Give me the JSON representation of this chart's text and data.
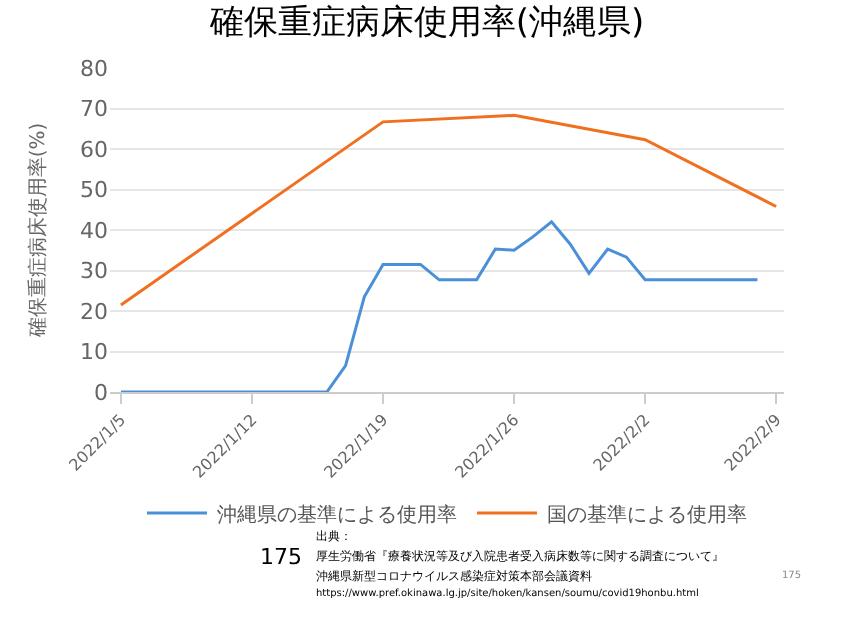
{
  "chart_data": {
    "type": "line",
    "title": "確保重症病床使用率(沖縄県)",
    "ylabel": "確保重症病床使用率(%)",
    "xlim": [
      "2022-01-04T10:00",
      "2022-02-09T10:00"
    ],
    "xticks": [
      {
        "value": "2022-01-05",
        "label": "2022/1/5"
      },
      {
        "value": "2022-01-12",
        "label": "2022/1/12"
      },
      {
        "value": "2022-01-19",
        "label": "2022/1/19"
      },
      {
        "value": "2022-01-26",
        "label": "2022/1/26"
      },
      {
        "value": "2022-02-02",
        "label": "2022/2/2"
      },
      {
        "value": "2022-02-09",
        "label": "2022/2/9"
      }
    ],
    "ylim": [
      0,
      80
    ],
    "yticks": [
      0,
      10,
      20,
      30,
      40,
      50,
      60,
      70,
      80
    ],
    "grid": "y",
    "legend": "bottom",
    "marker": "none",
    "line_style": "solid",
    "series": [
      {
        "name": "沖縄県の基準による使用率",
        "color": "#4a90d9",
        "x": [
          "2022-01-05",
          "2022-01-16",
          "2022-01-17",
          "2022-01-18",
          "2022-01-19",
          "2022-01-21",
          "2022-01-22",
          "2022-01-24",
          "2022-01-25",
          "2022-01-26",
          "2022-01-27",
          "2022-01-28",
          "2022-01-29",
          "2022-01-30",
          "2022-01-31",
          "2022-02-01",
          "2022-02-02",
          "2022-02-08"
        ],
        "values": [
          0,
          0,
          6.5,
          23.5,
          31.5,
          31.5,
          27.7,
          27.7,
          35.3,
          35,
          38.3,
          42,
          36.5,
          29.3,
          35.3,
          33.3,
          27.7,
          27.7
        ]
      },
      {
        "name": "国の基準による使用率",
        "color": "#f07020",
        "x": [
          "2022-01-05",
          "2022-01-19",
          "2022-01-26",
          "2022-02-02",
          "2022-02-09"
        ],
        "values": [
          21.5,
          66.7,
          68.3,
          62.3,
          45.8
        ]
      }
    ],
    "annotations": [
      "出典：",
      "厚生労働省『療養状況等及び入院患者受入病床数等に関する調査について』",
      "沖縄県新型コロナウイルス感染症対策本部会議資料",
      "https://www.pref.okinawa.lg.jp/site/hoken/kansen/soumu/covid19honbu.html",
      "175",
      "175"
    ]
  }
}
